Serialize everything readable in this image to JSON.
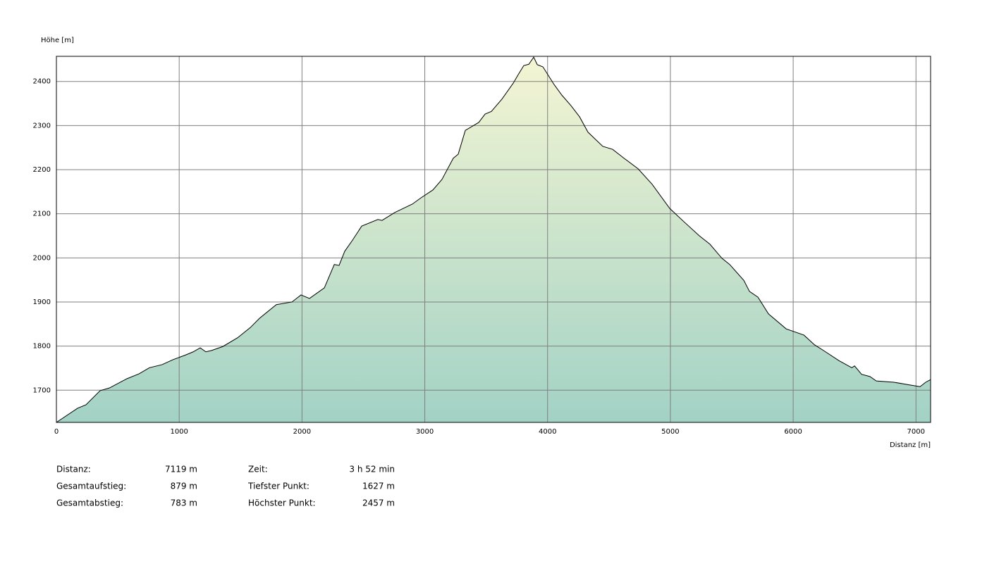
{
  "chart_data": {
    "type": "area",
    "y_label": "Höhe [m]",
    "x_label": "Distanz [m]",
    "x": [
      0,
      172,
      241,
      356,
      431,
      574,
      672,
      758,
      861,
      947,
      1045,
      1114,
      1171,
      1217,
      1263,
      1355,
      1476,
      1579,
      1654,
      1791,
      1918,
      1992,
      2061,
      2182,
      2263,
      2302,
      2348,
      2411,
      2486,
      2618,
      2652,
      2756,
      2899,
      2968,
      3066,
      3140,
      3232,
      3272,
      3330,
      3439,
      3491,
      3542,
      3628,
      3720,
      3760,
      3806,
      3847,
      3887,
      3916,
      3962,
      4053,
      4116,
      4191,
      4260,
      4329,
      4449,
      4530,
      4622,
      4737,
      4851,
      4995,
      5110,
      5236,
      5322,
      5420,
      5483,
      5598,
      5644,
      5713,
      5799,
      5943,
      6087,
      6173,
      6247,
      6373,
      6477,
      6500,
      6557,
      6625,
      6677,
      6821,
      6947,
      7033,
      7079,
      7119
    ],
    "values": [
      1627,
      1659,
      1667,
      1699,
      1705,
      1726,
      1737,
      1751,
      1758,
      1769,
      1779,
      1787,
      1796,
      1787,
      1790,
      1799,
      1819,
      1842,
      1863,
      1894,
      1900,
      1916,
      1908,
      1932,
      1985,
      1983,
      2015,
      2040,
      2072,
      2087,
      2085,
      2103,
      2122,
      2136,
      2154,
      2178,
      2226,
      2235,
      2289,
      2307,
      2326,
      2332,
      2360,
      2396,
      2415,
      2436,
      2439,
      2455,
      2438,
      2433,
      2393,
      2369,
      2345,
      2320,
      2285,
      2253,
      2246,
      2226,
      2202,
      2167,
      2112,
      2082,
      2050,
      2031,
      1999,
      1985,
      1949,
      1924,
      1911,
      1873,
      1839,
      1825,
      1803,
      1790,
      1767,
      1751,
      1755,
      1736,
      1731,
      1721,
      1718,
      1712,
      1708,
      1718,
      1724
    ],
    "xlim": [
      0,
      7119
    ],
    "ylim": [
      1627,
      2457
    ],
    "xticks": [
      0,
      1000,
      2000,
      3000,
      4000,
      5000,
      6000,
      7000
    ],
    "yticks": [
      1700,
      1800,
      1900,
      2000,
      2100,
      2200,
      2300,
      2400
    ],
    "grid": true,
    "line_color": "#000000",
    "fill_gradient": [
      "#f4f5d3",
      "#a2d2c5"
    ]
  },
  "stats": {
    "columns": [
      [
        {
          "label": "Distanz:",
          "value": "7119 m"
        },
        {
          "label": "Gesamtaufstieg:",
          "value": "879 m"
        },
        {
          "label": "Gesamtabstieg:",
          "value": "783 m"
        }
      ],
      [
        {
          "label": "Zeit:",
          "value": "3 h 52 min"
        },
        {
          "label": "Tiefster Punkt:",
          "value": "1627 m"
        },
        {
          "label": "Höchster Punkt:",
          "value": "2457 m"
        }
      ]
    ]
  }
}
